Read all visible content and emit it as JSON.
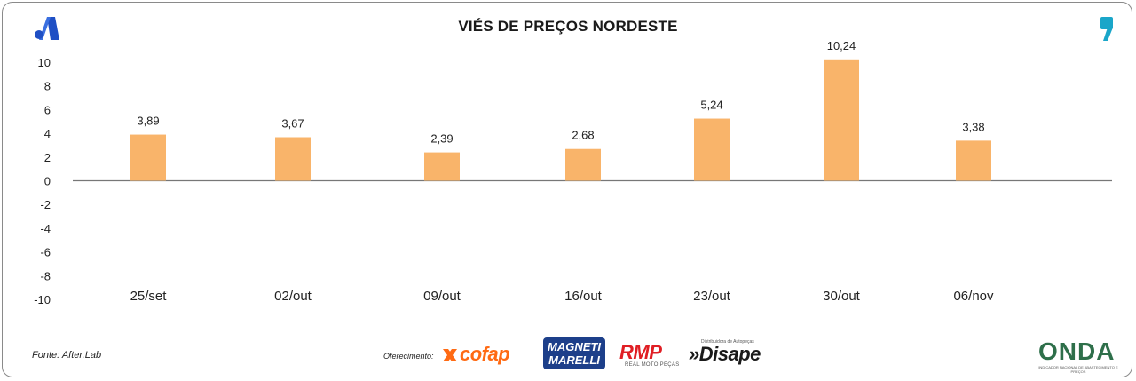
{
  "chart_data": {
    "type": "bar",
    "title": "VIÉS DE PREÇOS NORDESTE",
    "categories": [
      "25/set",
      "02/out",
      "09/out",
      "16/out",
      "23/out",
      "30/out",
      "06/nov"
    ],
    "values": [
      3.89,
      3.67,
      2.39,
      2.68,
      5.24,
      10.24,
      3.38
    ],
    "data_labels": [
      "3,89",
      "3,67",
      "2,39",
      "2,68",
      "5,24",
      "10,24",
      "3,38"
    ],
    "ylim": [
      -10,
      10
    ],
    "yticks": [
      10,
      8,
      6,
      4,
      2,
      0,
      -2,
      -4,
      -6,
      -8,
      -10
    ],
    "ytick_labels": [
      "10",
      "8",
      "6",
      "4",
      "2",
      "0",
      "-2",
      "-4",
      "-6",
      "-8",
      "-10"
    ],
    "xlabel": "",
    "ylabel": "",
    "grid": false,
    "legend": "none",
    "bar_color": "#f9b46a"
  },
  "footer": {
    "source": "Fonte: After.Lab",
    "offer_label": "Oferecimento:",
    "sponsors": {
      "cofap": "cofap",
      "magneti_line1": "MAGNETI",
      "magneti_line2": "MARELLI",
      "rmp": "RMP",
      "rmp_sub": "REAL MOTO PEÇAS",
      "disape": "»Disape",
      "disape_sub": "Distribuidora de Autopeças"
    },
    "onda": "ONDA",
    "onda_sub": "INDICADOR NACIONAL DE ABASTECIMENTO E PREÇOS"
  },
  "brand": {
    "left_icon": "a-logo-icon",
    "right_icon": "quote-mark-icon",
    "blue": "#1f4fc4",
    "teal": "#1aa6c9"
  }
}
